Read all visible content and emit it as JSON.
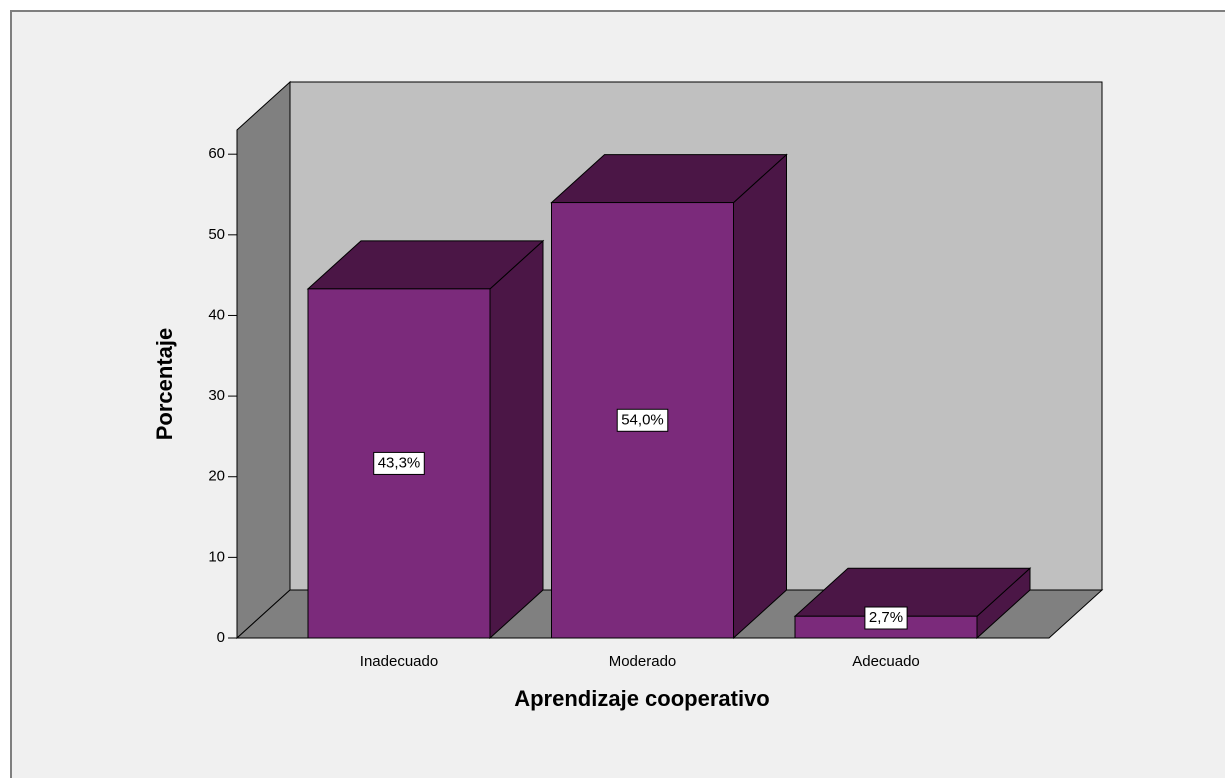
{
  "chart_data": {
    "type": "bar3d",
    "categories": [
      "Inadecuado",
      "Moderado",
      "Adecuado"
    ],
    "values": [
      43.3,
      54.0,
      2.7
    ],
    "value_labels": [
      "43,3%",
      "54,0%",
      "2,7%"
    ],
    "color": "#7b2a7b",
    "x_label": "Aprendizaje cooperativo",
    "y_label": "Porcentaje",
    "ylim": [
      0,
      63
    ],
    "yticks": [
      0,
      10,
      20,
      30,
      40,
      50,
      60
    ]
  }
}
